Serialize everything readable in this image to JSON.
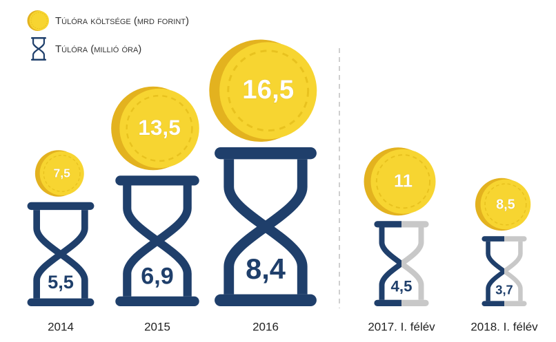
{
  "chart_data": {
    "type": "pictogram",
    "categories": [
      "2014",
      "2015",
      "2016",
      "2017. I. félév",
      "2018. I. félév"
    ],
    "series": [
      {
        "name": "Túlóra költsége (mrd forint)",
        "color": "#f7d531",
        "values": [
          7.5,
          13.5,
          16.5,
          11,
          8.5
        ],
        "value_labels": [
          "7,5",
          "13,5",
          "16,5",
          "11",
          "8,5"
        ]
      },
      {
        "name": "Túlóra (millió óra)",
        "color": "#1f3f6b",
        "values": [
          5.5,
          6.9,
          8.4,
          4.5,
          3.7
        ],
        "value_labels": [
          "5,5",
          "6,9",
          "8,4",
          "4,5",
          "3,7"
        ]
      }
    ],
    "half_year": [
      false,
      false,
      false,
      true,
      true
    ],
    "half_color": "#c8c8c8"
  }
}
